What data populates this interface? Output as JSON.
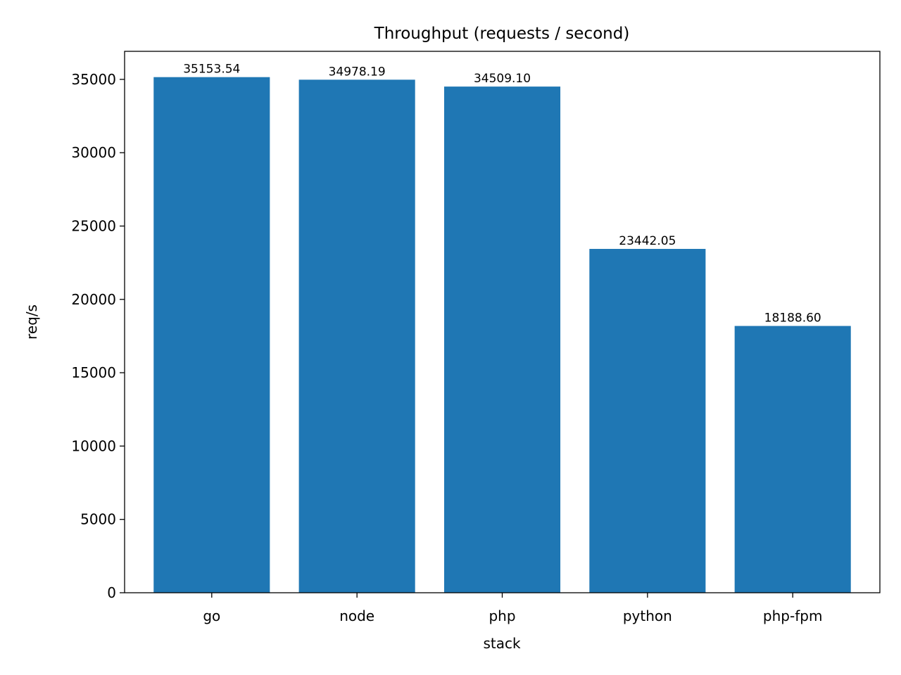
{
  "chart_data": {
    "type": "bar",
    "title": "Throughput (requests / second)",
    "xlabel": "stack",
    "ylabel": "req/s",
    "categories": [
      "go",
      "node",
      "php",
      "python",
      "php-fpm"
    ],
    "values": [
      35153.54,
      34978.19,
      34509.1,
      23442.05,
      18188.6
    ],
    "data_labels": [
      "35153.54",
      "34978.19",
      "34509.10",
      "23442.05",
      "18188.60"
    ],
    "ylim": [
      0,
      36912
    ],
    "yticks": [
      0,
      5000,
      10000,
      15000,
      20000,
      25000,
      30000,
      35000
    ],
    "bar_color": "#1f77b4",
    "grid": false,
    "legend": "none"
  }
}
